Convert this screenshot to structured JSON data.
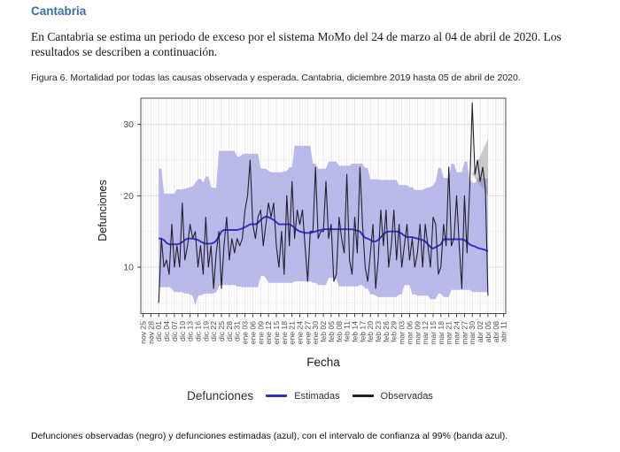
{
  "page": {
    "heading": "Cantabria",
    "heading_color": "#3a6fa8",
    "paragraph": "En Cantabria se estima un periodo de exceso por el sistema MoMo del 24 de marzo al 04 de abril de 2020. Los resultados se describen a continuación.",
    "figure_caption": "Figura 6. Mortalidad por todas las causas observada y esperada. Cantabria, diciembre 2019 hasta 05 de abril de 2020.",
    "bottom_caption": "Defunciones observadas (negro) y defunciones estimadas (azul), con el intervalo de confianza al 99% (banda azul)."
  },
  "chart_data": {
    "type": "line",
    "title": "",
    "xlabel": "Fecha",
    "ylabel": "Defunciones",
    "ylim": [
      3.5,
      34
    ],
    "yticks": [
      10,
      20,
      30
    ],
    "grid": true,
    "x_tick_interval_days": 3,
    "x_tick_labels": [
      "nov 25",
      "nov 28",
      "dic 01",
      "dic 04",
      "dic 07",
      "dic 10",
      "dic 13",
      "dic 16",
      "dic 19",
      "dic 22",
      "dic 25",
      "dic 28",
      "dic 31",
      "ene 03",
      "ene 06",
      "ene 09",
      "ene 12",
      "ene 15",
      "ene 18",
      "ene 21",
      "ene 24",
      "ene 27",
      "ene 30",
      "feb 02",
      "feb 05",
      "feb 08",
      "feb 11",
      "feb 14",
      "feb 17",
      "feb 20",
      "feb 23",
      "feb 26",
      "feb 29",
      "mar 03",
      "mar 06",
      "mar 09",
      "mar 12",
      "mar 15",
      "mar 18",
      "mar 21",
      "mar 24",
      "mar 27",
      "mar 30",
      "abr 02",
      "abr 05",
      "abr 08",
      "abr 11"
    ],
    "data_start": "dic 01",
    "data_end": "abr 05",
    "legend": {
      "title": "Defunciones",
      "position": "bottom",
      "entries": [
        {
          "label": "Estimadas",
          "color": "#2e2ecc"
        },
        {
          "label": "Observadas",
          "color": "#20202e"
        }
      ]
    },
    "band": {
      "label": "IC 99%",
      "color": "#b1b1e8",
      "upper": [
        23.8,
        23.8,
        20.3,
        20.3,
        20.3,
        20.3,
        20.3,
        20.9,
        20.9,
        20.9,
        21,
        21.1,
        21.2,
        21.3,
        21.8,
        22.3,
        22.4,
        21.8,
        22.7,
        22.7,
        21.2,
        21.1,
        21.1,
        26.3,
        26.3,
        26.3,
        26.3,
        26.3,
        26.3,
        26.3,
        25.5,
        25.5,
        25.8,
        25.9,
        25.9,
        25.9,
        25.9,
        25.9,
        25.9,
        23.8,
        23.8,
        23.8,
        23.5,
        23.3,
        23.3,
        23.3,
        23.3,
        23.3,
        23.4,
        23.5,
        24,
        24,
        27,
        27,
        27,
        27,
        27,
        27,
        27,
        24.5,
        24.5,
        23.8,
        23.8,
        23.8,
        23.8,
        24.8,
        24.8,
        24.8,
        24.8,
        24.2,
        24.2,
        24.2,
        24.2,
        24.2,
        24.5,
        24.5,
        24.5,
        24.5,
        24.5,
        23.9,
        23.9,
        22.3,
        22.3,
        22.3,
        22.3,
        22.2,
        22.2,
        22.2,
        22.2,
        22.2,
        22.2,
        22.2,
        21.5,
        21.5,
        21.5,
        21.5,
        21.2,
        21.2,
        20.8,
        20.8,
        20.8,
        20.8,
        21,
        21.2,
        21.2,
        21.5,
        22,
        23.9,
        23.9,
        22.5,
        22.5,
        22.5,
        24.5,
        24.5,
        23.3,
        23.3,
        23.3,
        24.8,
        24.8,
        22.3,
        21.8,
        21.8,
        22.5,
        22.5,
        22.5,
        22.5,
        22.3
      ],
      "lower": [
        7.2,
        7.2,
        7.2,
        7.2,
        7.2,
        7,
        6.5,
        6.5,
        6.5,
        6.5,
        6.3,
        6.3,
        6.2,
        6,
        4.6,
        6,
        6,
        6.2,
        6.3,
        6.3,
        6.3,
        6.3,
        6.5,
        7.3,
        7.5,
        7.5,
        7.5,
        7.5,
        7.5,
        7.5,
        7.3,
        7.3,
        7.2,
        7.2,
        7.2,
        7.2,
        7.2,
        7.2,
        7.2,
        8.8,
        8.8,
        8.5,
        7.8,
        7.8,
        7.8,
        7.8,
        7.8,
        7.8,
        7.8,
        7.8,
        7.8,
        7.8,
        8,
        8,
        8,
        8,
        8,
        8,
        8,
        7.8,
        7.8,
        7.5,
        7.5,
        7.5,
        7.5,
        8.5,
        8.5,
        8.5,
        8.3,
        7.3,
        7.3,
        7.3,
        7.3,
        7.3,
        7.3,
        7.3,
        7.3,
        7.5,
        7.5,
        7,
        7,
        6.2,
        6.2,
        6,
        5.8,
        5.8,
        5.8,
        5.8,
        5.8,
        5.8,
        5.8,
        5.8,
        6.2,
        6.2,
        7.5,
        7.5,
        7.5,
        6.2,
        6.2,
        6,
        6,
        6,
        6,
        6,
        5.5,
        5.5,
        5.5,
        6.3,
        6.3,
        5.8,
        5.8,
        5.8,
        6.8,
        6.8,
        6.8,
        6.8,
        6.8,
        6.8,
        6.8,
        6.8,
        6.5,
        6.5,
        6.5,
        6.5,
        6.5,
        6.5,
        6.5
      ]
    },
    "series": [
      {
        "name": "Estimadas",
        "color": "#2e2ecc",
        "values": [
          14,
          14,
          13.8,
          13.4,
          13.2,
          13.2,
          13.2,
          13.2,
          13.3,
          13.5,
          13.8,
          14,
          14,
          14,
          13.9,
          13.8,
          13.6,
          13.4,
          13.3,
          13.3,
          13.3,
          13.4,
          13.7,
          14.3,
          15,
          15.2,
          15.2,
          15.2,
          15.2,
          15.2,
          15.2,
          15.3,
          15.4,
          15.6,
          15.8,
          16,
          16,
          16,
          16.2,
          16.6,
          16.9,
          17.1,
          17,
          16.8,
          16.6,
          16.3,
          16,
          16,
          16,
          16,
          16,
          15.8,
          15.5,
          15.2,
          15,
          14.9,
          14.8,
          14.8,
          14.8,
          14.9,
          15,
          15.1,
          15.2,
          15.3,
          15.3,
          15.3,
          15.3,
          15.3,
          15.3,
          15.3,
          15.3,
          15.3,
          15.3,
          15.3,
          15.3,
          15.2,
          15.1,
          15,
          14.5,
          14.1,
          14,
          13.8,
          13.6,
          13.6,
          13.8,
          14.2,
          14.6,
          14.9,
          15,
          15,
          15,
          15,
          14.9,
          14.7,
          14.4,
          14.2,
          14.2,
          14.2,
          14.1,
          14,
          13.9,
          13.8,
          13.6,
          13.2,
          12.8,
          12.6,
          12.8,
          13,
          13.2,
          13.9,
          13.9,
          13.9,
          13.9,
          13.9,
          13.9,
          13.9,
          13.9,
          13.8,
          13.5,
          13.2,
          13,
          12.9,
          12.7,
          12.6,
          12.5,
          12.4,
          12.2
        ]
      },
      {
        "name": "Observadas",
        "color": "#20202e",
        "values": [
          5,
          14,
          10,
          11,
          9,
          16,
          10,
          13,
          10,
          19,
          11,
          13,
          16,
          14,
          15,
          10,
          13,
          9,
          17,
          10,
          13,
          7,
          12,
          15,
          7,
          13,
          17,
          11,
          14,
          12,
          14,
          13,
          14,
          18,
          20,
          25,
          16,
          14,
          17,
          18,
          13,
          16,
          19,
          17,
          19,
          13,
          10,
          15,
          9,
          20,
          13,
          22,
          14,
          18,
          16,
          18,
          13,
          8,
          15,
          15,
          24,
          14,
          15,
          15,
          22,
          14,
          16,
          8,
          9,
          17,
          14,
          12,
          23,
          11,
          9,
          17,
          12,
          24,
          16,
          10,
          8,
          12,
          16,
          7,
          11,
          18,
          13,
          18,
          10,
          13,
          18,
          11,
          16,
          10,
          13,
          16,
          11,
          14,
          10,
          12,
          16,
          10,
          16,
          13,
          10,
          17,
          16,
          9,
          10,
          16,
          13,
          24,
          13,
          14,
          20,
          13,
          7,
          20,
          12,
          21,
          33,
          23,
          25,
          22,
          24,
          21,
          6
        ]
      }
    ],
    "recent_consolidation_fan": {
      "color": "#8c8c8c",
      "start": "mar 30",
      "end": "abr 05",
      "top": 28,
      "bottom": 20
    }
  }
}
